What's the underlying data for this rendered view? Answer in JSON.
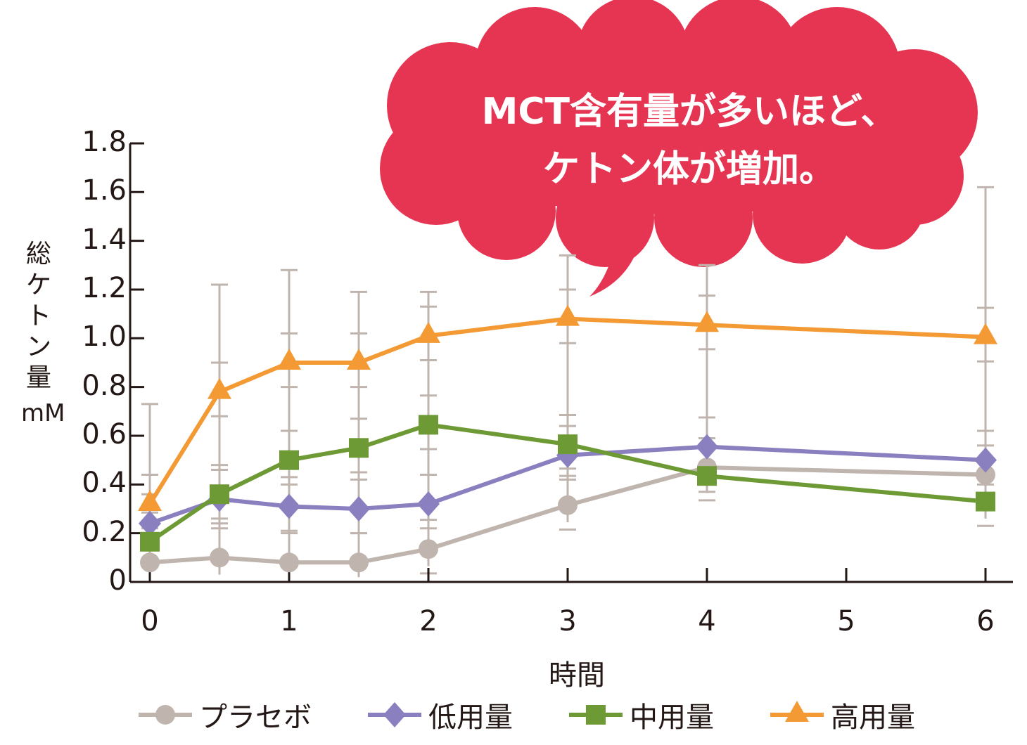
{
  "chart_data": {
    "type": "line",
    "title": "",
    "xlabel": "時間",
    "ylabel": "総ケトン量（mM）",
    "ylabel_main": "総ケトン量",
    "ylabel_unit": "mM",
    "xlim": [
      0,
      6
    ],
    "ylim": [
      0,
      1.8
    ],
    "x_ticks": [
      "0",
      "1",
      "2",
      "3",
      "4",
      "5",
      "6"
    ],
    "y_ticks": [
      "0",
      "0.2",
      "0.4",
      "0.6",
      "0.8",
      "1.0",
      "1.2",
      "1.4",
      "1.6",
      "1.8"
    ],
    "grid": false,
    "legend_position": "bottom",
    "x": [
      0,
      0.5,
      1,
      1.5,
      2,
      3,
      4,
      6
    ],
    "series": [
      {
        "name": "プラセボ",
        "color": "#BFB5AE",
        "marker": "circle",
        "values": [
          0.08,
          0.1,
          0.08,
          0.08,
          0.135,
          0.315,
          0.47,
          0.44
        ]
      },
      {
        "name": "低用量",
        "color": "#8A80C0",
        "marker": "diamond",
        "values": [
          0.24,
          0.34,
          0.31,
          0.3,
          0.32,
          0.52,
          0.555,
          0.5
        ]
      },
      {
        "name": "中用量",
        "color": "#6E9A35",
        "marker": "square",
        "values": [
          0.165,
          0.36,
          0.5,
          0.55,
          0.645,
          0.565,
          0.435,
          0.33
        ]
      },
      {
        "name": "高用量",
        "color": "#F39A34",
        "marker": "triangle",
        "values": [
          0.32,
          0.78,
          0.9,
          0.9,
          1.01,
          1.08,
          1.055,
          1.005
        ]
      }
    ],
    "error_bars": {
      "color": "#BFB5AE",
      "upper_caps_high_dose": [
        0.73,
        1.22,
        1.28,
        1.19,
        1.19,
        1.34,
        1.3,
        1.62
      ]
    },
    "annotation": {
      "line1": "MCT含有量が多いほど、",
      "line2": "ケトン体が増加。",
      "bubble_color": "#E63552",
      "text_color": "#FFFFFF"
    }
  }
}
